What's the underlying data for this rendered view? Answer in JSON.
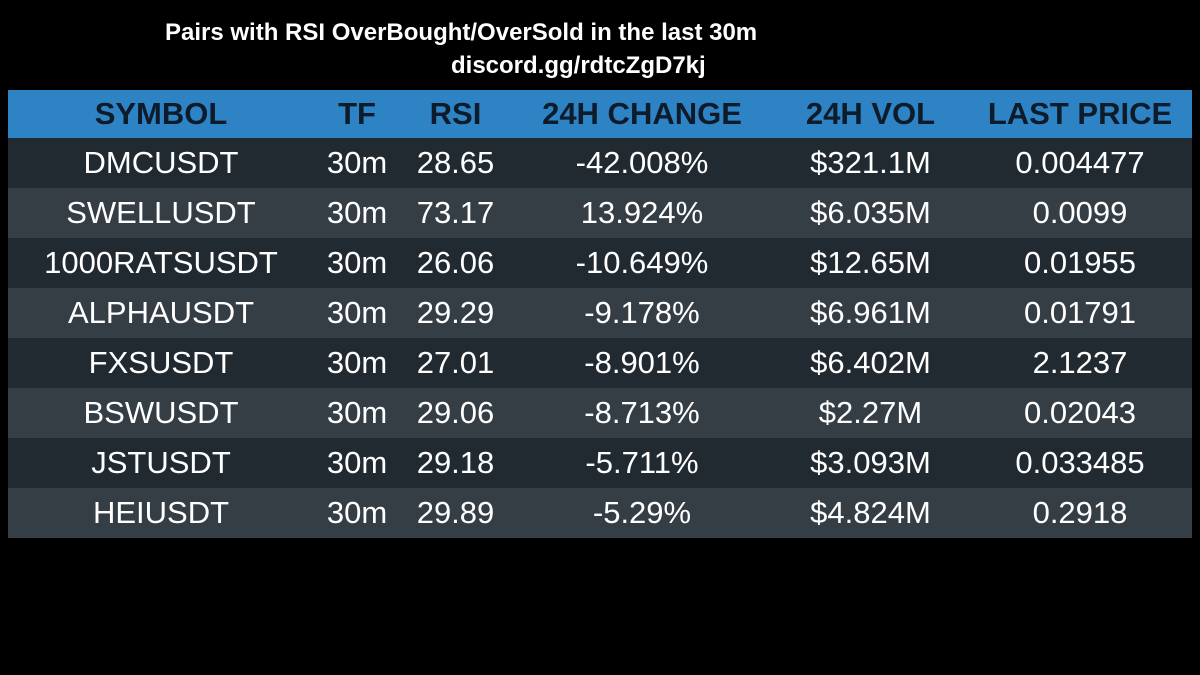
{
  "header": {
    "title": "Pairs with RSI OverBought/OverSold in the last 30m",
    "subtitle": "discord.gg/rdtcZgD7kj"
  },
  "table": {
    "columns": [
      "SYMBOL",
      "TF",
      "RSI",
      "24H CHANGE",
      "24H VOL",
      "LAST PRICE"
    ],
    "rows": [
      [
        "DMCUSDT",
        "30m",
        "28.65",
        "-42.008%",
        "$321.1M",
        "0.004477"
      ],
      [
        "SWELLUSDT",
        "30m",
        "73.17",
        "13.924%",
        "$6.035M",
        "0.0099"
      ],
      [
        "1000RATSUSDT",
        "30m",
        "26.06",
        "-10.649%",
        "$12.65M",
        "0.01955"
      ],
      [
        "ALPHAUSDT",
        "30m",
        "29.29",
        "-9.178%",
        "$6.961M",
        "0.01791"
      ],
      [
        "FXSUSDT",
        "30m",
        "27.01",
        "-8.901%",
        "$6.402M",
        "2.1237"
      ],
      [
        "BSWUSDT",
        "30m",
        "29.06",
        "-8.713%",
        "$2.27M",
        "0.02043"
      ],
      [
        "JSTUSDT",
        "30m",
        "29.18",
        "-5.711%",
        "$3.093M",
        "0.033485"
      ],
      [
        "HEIUSDT",
        "30m",
        "29.89",
        "-5.29%",
        "$4.824M",
        "0.2918"
      ]
    ]
  },
  "colors": {
    "background": "#000000",
    "header_row": "#2e83c4",
    "header_text": "#0d1b2a",
    "row_dark": "#222a31",
    "row_light": "#353d45",
    "text": "#ffffff"
  }
}
